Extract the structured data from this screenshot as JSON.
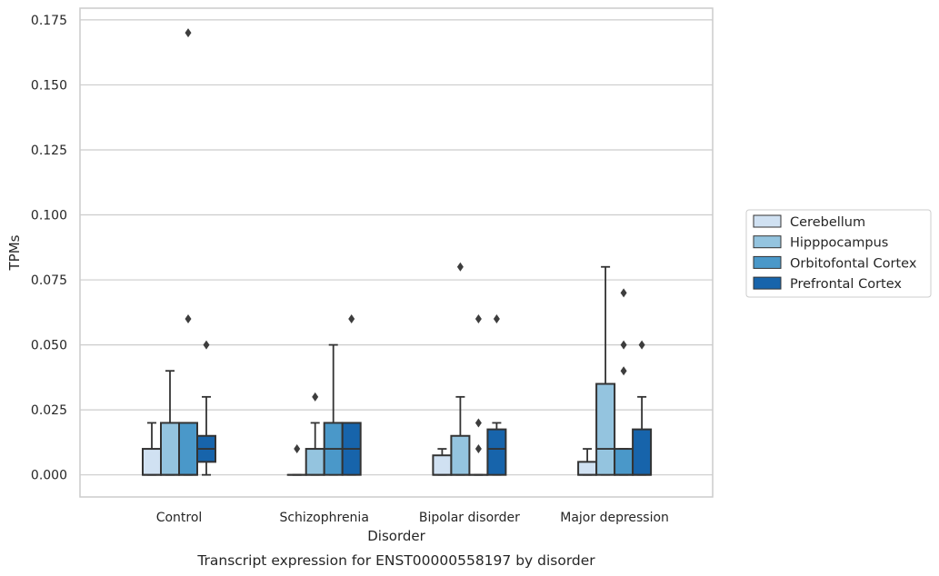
{
  "chart_data": {
    "type": "boxplot",
    "xlabel": "Disorder",
    "ylabel": "TPMs",
    "caption": "Transcript expression for ENST00000558197 by disorder",
    "categories": [
      "Control",
      "Schizophrenia",
      "Bipolar disorder",
      "Major depression"
    ],
    "ylim": [
      -0.0085,
      0.1795
    ],
    "yticks": [
      0.0,
      0.025,
      0.05,
      0.075,
      0.1,
      0.125,
      0.15,
      0.175
    ],
    "ytick_labels": [
      "0.000",
      "0.025",
      "0.050",
      "0.075",
      "0.100",
      "0.125",
      "0.150",
      "0.175"
    ],
    "grid": true,
    "legend_position": "right",
    "series": [
      {
        "name": "Cerebellum",
        "color": "#d0e1f2",
        "boxes": [
          {
            "q1": 0.0,
            "median": 0.0,
            "q3": 0.01,
            "whislo": 0.0,
            "whishi": 0.02,
            "fliers": []
          },
          {
            "q1": 0.0,
            "median": 0.0,
            "q3": 0.0,
            "whislo": 0.0,
            "whishi": 0.0,
            "fliers": [
              0.01
            ]
          },
          {
            "q1": 0.0,
            "median": 0.0,
            "q3": 0.0075,
            "whislo": 0.0,
            "whishi": 0.01,
            "fliers": []
          },
          {
            "q1": 0.0,
            "median": 0.0,
            "q3": 0.005,
            "whislo": 0.0,
            "whishi": 0.01,
            "fliers": []
          }
        ]
      },
      {
        "name": "Hipppocampus",
        "color": "#94c4df",
        "boxes": [
          {
            "q1": 0.0,
            "median": 0.0,
            "q3": 0.02,
            "whislo": 0.0,
            "whishi": 0.04,
            "fliers": []
          },
          {
            "q1": 0.0,
            "median": 0.0,
            "q3": 0.01,
            "whislo": 0.0,
            "whishi": 0.02,
            "fliers": [
              0.03
            ]
          },
          {
            "q1": 0.0,
            "median": 0.0,
            "q3": 0.015,
            "whislo": 0.0,
            "whishi": 0.03,
            "fliers": [
              0.08
            ]
          },
          {
            "q1": 0.0,
            "median": 0.01,
            "q3": 0.035,
            "whislo": 0.0,
            "whishi": 0.08,
            "fliers": []
          }
        ]
      },
      {
        "name": "Orbitofontal Cortex",
        "color": "#4a98c9",
        "boxes": [
          {
            "q1": 0.0,
            "median": 0.0,
            "q3": 0.02,
            "whislo": 0.0,
            "whishi": 0.02,
            "fliers": [
              0.06,
              0.17
            ]
          },
          {
            "q1": 0.0,
            "median": 0.01,
            "q3": 0.02,
            "whislo": 0.0,
            "whishi": 0.05,
            "fliers": []
          },
          {
            "q1": 0.0,
            "median": 0.0,
            "q3": 0.0,
            "whislo": 0.0,
            "whishi": 0.0,
            "fliers": [
              0.01,
              0.02,
              0.06
            ]
          },
          {
            "q1": 0.0,
            "median": 0.0,
            "q3": 0.01,
            "whislo": 0.0,
            "whishi": 0.01,
            "fliers": [
              0.04,
              0.05,
              0.07
            ]
          }
        ]
      },
      {
        "name": "Prefrontal Cortex",
        "color": "#1764ab",
        "boxes": [
          {
            "q1": 0.005,
            "median": 0.01,
            "q3": 0.015,
            "whislo": 0.0,
            "whishi": 0.03,
            "fliers": [
              0.05
            ]
          },
          {
            "q1": 0.0,
            "median": 0.01,
            "q3": 0.02,
            "whislo": 0.0,
            "whishi": 0.02,
            "fliers": [
              0.06
            ]
          },
          {
            "q1": 0.0,
            "median": 0.01,
            "q3": 0.0175,
            "whislo": 0.0,
            "whishi": 0.02,
            "fliers": [
              0.06
            ]
          },
          {
            "q1": 0.0,
            "median": 0.0,
            "q3": 0.0175,
            "whislo": 0.0,
            "whishi": 0.03,
            "fliers": [
              0.05
            ]
          }
        ]
      }
    ]
  }
}
